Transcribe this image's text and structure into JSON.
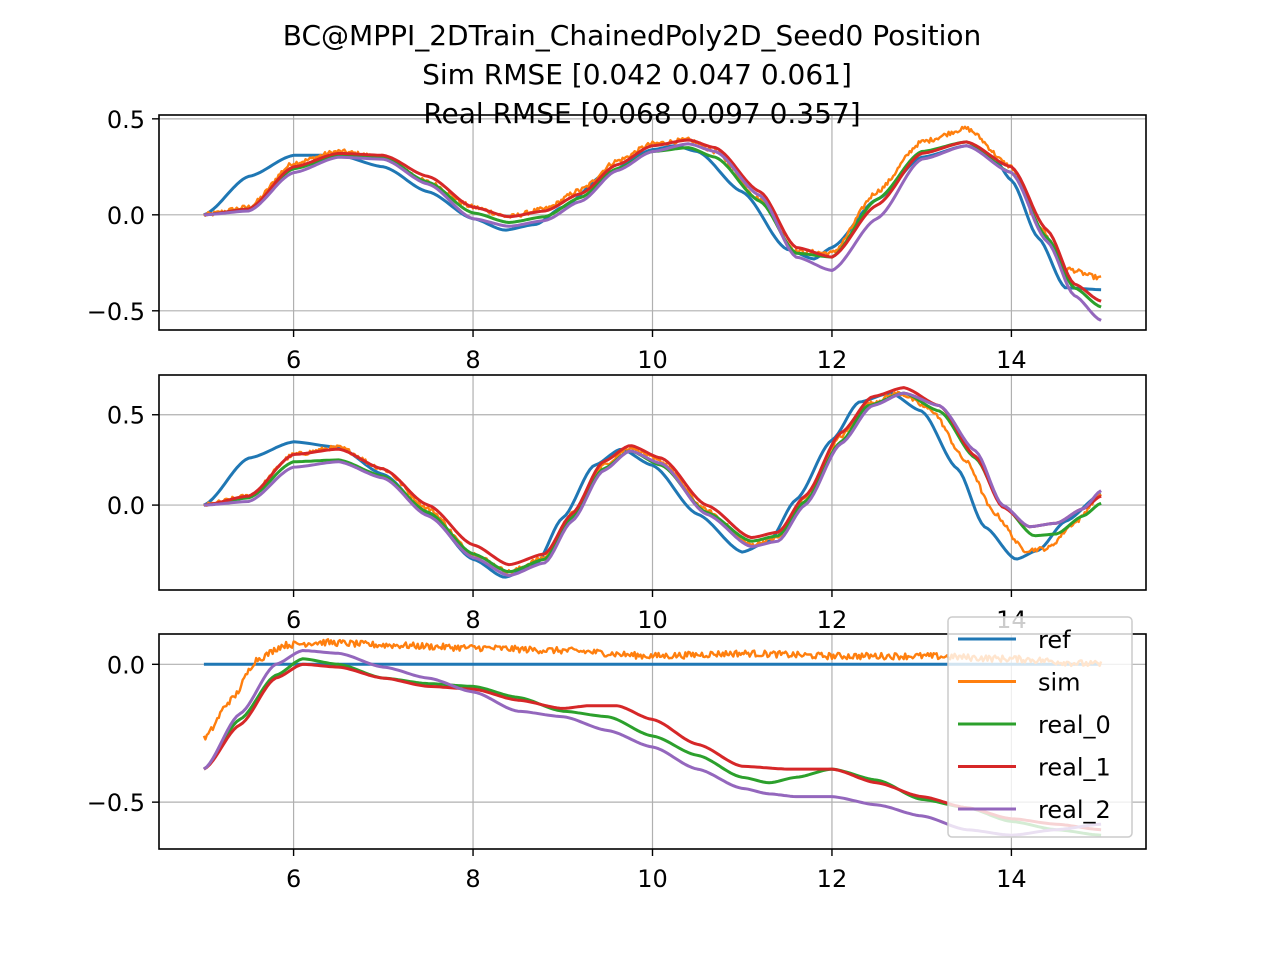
{
  "figure": {
    "title_lines": [
      "BC@MPPI_2DTrain_ChainedPoly2D_Seed0   Position",
      "Sim RMSE [0.042 0.047 0.061]",
      "Real RMSE [0.068 0.097 0.357]"
    ]
  },
  "chart_data": [
    {
      "type": "line",
      "title": "",
      "xlabel": "",
      "ylabel": "",
      "xlim": [
        4.5,
        15.5
      ],
      "ylim": [
        -0.6,
        0.52
      ],
      "xticks": [
        6,
        8,
        10,
        12,
        14
      ],
      "yticks": [
        -0.5,
        0.0,
        0.5
      ],
      "xtick_labels": [
        "6",
        "8",
        "10",
        "12",
        "14"
      ],
      "ytick_labels": [
        "−0.5",
        "0.0",
        "0.5"
      ],
      "grid": true,
      "series": [
        {
          "name": "ref",
          "color": "#1f77b4",
          "x": [
            5.0,
            5.5,
            6.0,
            6.5,
            7.0,
            7.5,
            8.0,
            8.35,
            8.7,
            9.0,
            9.5,
            10.0,
            10.25,
            10.5,
            11.0,
            11.5,
            11.8,
            12.0,
            12.5,
            13.0,
            13.5,
            13.8,
            14.0,
            14.3,
            14.6,
            15.0
          ],
          "y": [
            0.0,
            0.2,
            0.31,
            0.31,
            0.25,
            0.12,
            -0.02,
            -0.08,
            -0.05,
            0.04,
            0.22,
            0.34,
            0.36,
            0.33,
            0.12,
            -0.18,
            -0.23,
            -0.17,
            0.08,
            0.3,
            0.36,
            0.3,
            0.18,
            -0.12,
            -0.38,
            -0.39
          ]
        },
        {
          "name": "sim",
          "color": "#ff7f0e",
          "noise": 0.012,
          "x": [
            5.0,
            5.5,
            6.0,
            6.5,
            7.0,
            7.5,
            8.0,
            8.4,
            8.8,
            9.2,
            9.6,
            10.0,
            10.4,
            10.7,
            11.2,
            11.6,
            12.0,
            12.5,
            13.0,
            13.5,
            14.0,
            14.3,
            14.6,
            15.0
          ],
          "y": [
            0.0,
            0.04,
            0.27,
            0.33,
            0.3,
            0.17,
            0.04,
            -0.01,
            0.03,
            0.13,
            0.28,
            0.37,
            0.39,
            0.33,
            0.08,
            -0.19,
            -0.2,
            0.12,
            0.38,
            0.45,
            0.25,
            -0.05,
            -0.28,
            -0.33
          ]
        },
        {
          "name": "real_0",
          "color": "#2ca02c",
          "x": [
            5.0,
            5.5,
            6.0,
            6.5,
            7.0,
            7.5,
            8.0,
            8.4,
            8.8,
            9.2,
            9.6,
            10.0,
            10.4,
            10.7,
            11.2,
            11.6,
            12.0,
            12.5,
            13.0,
            13.5,
            14.0,
            14.4,
            14.7,
            15.0
          ],
          "y": [
            0.0,
            0.03,
            0.24,
            0.31,
            0.3,
            0.17,
            0.01,
            -0.04,
            -0.01,
            0.09,
            0.24,
            0.33,
            0.35,
            0.3,
            0.07,
            -0.2,
            -0.22,
            0.08,
            0.33,
            0.38,
            0.22,
            -0.12,
            -0.38,
            -0.48
          ]
        },
        {
          "name": "real_1",
          "color": "#d62728",
          "x": [
            5.0,
            5.5,
            6.0,
            6.5,
            7.0,
            7.5,
            8.0,
            8.4,
            8.8,
            9.2,
            9.6,
            10.0,
            10.4,
            10.7,
            11.2,
            11.6,
            12.0,
            12.5,
            13.0,
            13.5,
            14.0,
            14.4,
            14.7,
            15.0
          ],
          "y": [
            0.0,
            0.03,
            0.25,
            0.32,
            0.31,
            0.2,
            0.04,
            -0.01,
            0.02,
            0.11,
            0.26,
            0.36,
            0.39,
            0.35,
            0.12,
            -0.17,
            -0.22,
            0.05,
            0.32,
            0.38,
            0.25,
            -0.08,
            -0.36,
            -0.45
          ]
        },
        {
          "name": "real_2",
          "color": "#9467bd",
          "x": [
            5.0,
            5.5,
            6.0,
            6.5,
            7.0,
            7.5,
            8.0,
            8.4,
            8.8,
            9.2,
            9.6,
            10.0,
            10.4,
            10.7,
            11.2,
            11.6,
            12.0,
            12.5,
            13.0,
            13.5,
            14.0,
            14.4,
            14.7,
            15.0
          ],
          "y": [
            0.0,
            0.02,
            0.22,
            0.3,
            0.29,
            0.16,
            -0.02,
            -0.06,
            -0.03,
            0.07,
            0.23,
            0.33,
            0.37,
            0.33,
            0.1,
            -0.22,
            -0.29,
            -0.02,
            0.29,
            0.36,
            0.22,
            -0.14,
            -0.42,
            -0.55
          ]
        }
      ]
    },
    {
      "type": "line",
      "title": "",
      "xlabel": "",
      "ylabel": "",
      "xlim": [
        4.5,
        15.5
      ],
      "ylim": [
        -0.47,
        0.72
      ],
      "xticks": [
        6,
        8,
        10,
        12,
        14
      ],
      "yticks": [
        0.0,
        0.5
      ],
      "xtick_labels": [
        "6",
        "8",
        "10",
        "12",
        "14"
      ],
      "ytick_labels": [
        "0.0",
        "0.5"
      ],
      "grid": true,
      "series": [
        {
          "name": "ref",
          "color": "#1f77b4",
          "x": [
            5.0,
            5.5,
            6.0,
            6.5,
            7.0,
            7.5,
            8.0,
            8.35,
            8.7,
            9.0,
            9.35,
            9.65,
            10.0,
            10.5,
            11.0,
            11.3,
            11.6,
            12.0,
            12.3,
            12.65,
            13.0,
            13.4,
            13.7,
            14.05,
            14.3,
            14.6,
            15.0
          ],
          "y": [
            0.0,
            0.26,
            0.35,
            0.32,
            0.17,
            -0.05,
            -0.3,
            -0.4,
            -0.33,
            -0.07,
            0.22,
            0.31,
            0.22,
            -0.05,
            -0.26,
            -0.2,
            0.03,
            0.36,
            0.57,
            0.62,
            0.52,
            0.2,
            -0.12,
            -0.3,
            -0.25,
            -0.09,
            0.06
          ]
        },
        {
          "name": "sim",
          "color": "#ff7f0e",
          "noise": 0.012,
          "x": [
            5.0,
            5.5,
            6.0,
            6.5,
            7.0,
            7.5,
            8.0,
            8.4,
            8.8,
            9.1,
            9.45,
            9.75,
            10.1,
            10.6,
            11.1,
            11.4,
            11.7,
            12.1,
            12.4,
            12.75,
            13.1,
            13.5,
            13.8,
            14.15,
            14.4,
            14.7,
            15.0
          ],
          "y": [
            0.0,
            0.05,
            0.28,
            0.32,
            0.2,
            -0.02,
            -0.27,
            -0.37,
            -0.29,
            -0.05,
            0.22,
            0.32,
            0.24,
            -0.03,
            -0.22,
            -0.18,
            0.04,
            0.38,
            0.56,
            0.62,
            0.53,
            0.24,
            -0.04,
            -0.25,
            -0.24,
            -0.1,
            0.06
          ]
        },
        {
          "name": "real_0",
          "color": "#2ca02c",
          "x": [
            5.0,
            5.5,
            6.0,
            6.5,
            7.0,
            7.5,
            8.0,
            8.4,
            8.8,
            9.1,
            9.45,
            9.75,
            10.1,
            10.6,
            11.1,
            11.4,
            11.7,
            12.1,
            12.4,
            12.8,
            13.2,
            13.6,
            13.9,
            14.25,
            14.5,
            14.8,
            15.0
          ],
          "y": [
            0.0,
            0.04,
            0.24,
            0.25,
            0.16,
            -0.04,
            -0.27,
            -0.37,
            -0.3,
            -0.07,
            0.2,
            0.3,
            0.22,
            -0.04,
            -0.2,
            -0.17,
            0.02,
            0.35,
            0.55,
            0.62,
            0.52,
            0.26,
            0.0,
            -0.17,
            -0.16,
            -0.06,
            0.01
          ]
        },
        {
          "name": "real_1",
          "color": "#d62728",
          "x": [
            5.0,
            5.5,
            6.0,
            6.5,
            7.0,
            7.5,
            8.0,
            8.4,
            8.8,
            9.1,
            9.45,
            9.75,
            10.1,
            10.6,
            11.1,
            11.4,
            11.7,
            12.1,
            12.45,
            12.8,
            13.2,
            13.6,
            13.9,
            14.2,
            14.5,
            14.8,
            15.0
          ],
          "y": [
            0.0,
            0.05,
            0.28,
            0.31,
            0.2,
            0.0,
            -0.22,
            -0.33,
            -0.27,
            -0.05,
            0.24,
            0.33,
            0.26,
            0.0,
            -0.18,
            -0.15,
            0.05,
            0.4,
            0.6,
            0.65,
            0.55,
            0.27,
            -0.01,
            -0.12,
            -0.1,
            -0.02,
            0.05
          ]
        },
        {
          "name": "real_2",
          "color": "#9467bd",
          "x": [
            5.0,
            5.5,
            6.0,
            6.5,
            7.0,
            7.5,
            8.0,
            8.4,
            8.8,
            9.1,
            9.45,
            9.75,
            10.1,
            10.6,
            11.1,
            11.4,
            11.7,
            12.1,
            12.45,
            12.8,
            13.2,
            13.6,
            13.9,
            14.2,
            14.5,
            14.8,
            15.0
          ],
          "y": [
            0.0,
            0.02,
            0.21,
            0.24,
            0.15,
            -0.06,
            -0.29,
            -0.39,
            -0.32,
            -0.09,
            0.19,
            0.3,
            0.23,
            -0.05,
            -0.23,
            -0.2,
            0.0,
            0.34,
            0.55,
            0.62,
            0.55,
            0.3,
            0.0,
            -0.12,
            -0.1,
            -0.02,
            0.08
          ]
        }
      ]
    },
    {
      "type": "line",
      "title": "",
      "xlabel": "",
      "ylabel": "",
      "xlim": [
        4.5,
        15.5
      ],
      "ylim": [
        -0.67,
        0.11
      ],
      "xticks": [
        6,
        8,
        10,
        12,
        14
      ],
      "yticks": [
        -0.5,
        0.0
      ],
      "xtick_labels": [
        "6",
        "8",
        "10",
        "12",
        "14"
      ],
      "ytick_labels": [
        "−0.5",
        "0.0"
      ],
      "grid": true,
      "legend": {
        "placement": "top-right",
        "entries": [
          "ref",
          "sim",
          "real_0",
          "real_1",
          "real_2"
        ]
      },
      "series": [
        {
          "name": "ref",
          "color": "#1f77b4",
          "x": [
            5.0,
            15.0
          ],
          "y": [
            0.0,
            0.0
          ]
        },
        {
          "name": "sim",
          "color": "#ff7f0e",
          "noise": 0.012,
          "x": [
            5.0,
            5.3,
            5.6,
            5.9,
            6.3,
            7.0,
            8.0,
            9.0,
            10.0,
            11.0,
            12.0,
            13.0,
            14.0,
            15.0
          ],
          "y": [
            -0.27,
            -0.13,
            0.02,
            0.07,
            0.08,
            0.07,
            0.06,
            0.05,
            0.03,
            0.04,
            0.03,
            0.03,
            0.02,
            0.0
          ]
        },
        {
          "name": "real_0",
          "color": "#2ca02c",
          "x": [
            5.0,
            5.4,
            5.8,
            6.1,
            6.5,
            7.0,
            7.5,
            8.0,
            8.5,
            9.0,
            9.5,
            10.0,
            10.5,
            11.0,
            11.3,
            11.6,
            12.0,
            12.5,
            13.0,
            13.5,
            14.0,
            14.5,
            15.0
          ],
          "y": [
            -0.38,
            -0.2,
            -0.04,
            0.02,
            0.0,
            -0.05,
            -0.07,
            -0.08,
            -0.12,
            -0.17,
            -0.19,
            -0.26,
            -0.33,
            -0.41,
            -0.43,
            -0.41,
            -0.38,
            -0.42,
            -0.49,
            -0.52,
            -0.57,
            -0.6,
            -0.62
          ]
        },
        {
          "name": "real_1",
          "color": "#d62728",
          "x": [
            5.0,
            5.4,
            5.8,
            6.1,
            6.5,
            7.0,
            7.5,
            8.0,
            8.5,
            9.0,
            9.3,
            9.6,
            10.0,
            10.5,
            11.0,
            11.5,
            12.0,
            12.5,
            13.0,
            13.5,
            14.0,
            14.5,
            15.0
          ],
          "y": [
            -0.38,
            -0.22,
            -0.05,
            0.0,
            -0.01,
            -0.05,
            -0.08,
            -0.09,
            -0.13,
            -0.16,
            -0.15,
            -0.15,
            -0.2,
            -0.29,
            -0.37,
            -0.38,
            -0.38,
            -0.43,
            -0.48,
            -0.52,
            -0.56,
            -0.58,
            -0.6
          ]
        },
        {
          "name": "real_2",
          "color": "#9467bd",
          "x": [
            5.0,
            5.4,
            5.8,
            6.1,
            6.5,
            7.0,
            7.5,
            8.0,
            8.5,
            9.0,
            9.5,
            10.0,
            10.5,
            11.0,
            11.3,
            11.6,
            12.0,
            12.5,
            13.0,
            13.5,
            14.0,
            14.5,
            15.0
          ],
          "y": [
            -0.38,
            -0.18,
            0.0,
            0.05,
            0.04,
            -0.01,
            -0.05,
            -0.1,
            -0.17,
            -0.19,
            -0.24,
            -0.3,
            -0.38,
            -0.45,
            -0.47,
            -0.48,
            -0.48,
            -0.51,
            -0.55,
            -0.6,
            -0.62,
            -0.6,
            -0.58
          ]
        }
      ]
    }
  ]
}
